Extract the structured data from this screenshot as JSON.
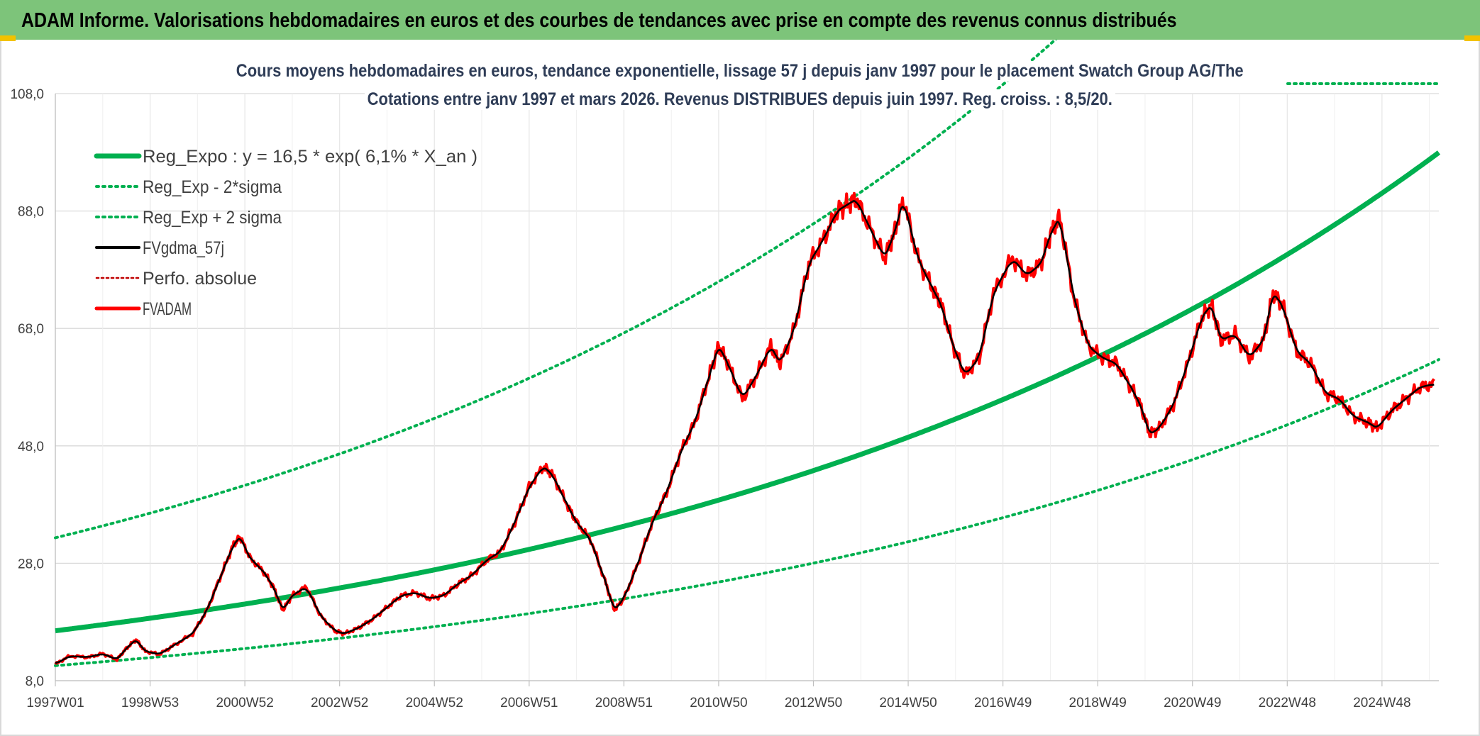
{
  "banner": {
    "title": "ADAM Informe. Valorisations hebdomadaires en euros et des courbes de tendances avec prise en compte des revenus connus distribués"
  },
  "colors": {
    "banner": "#7dc47a",
    "trend": "#00b050",
    "price": "#ff0000",
    "average": "#000000",
    "perf": "#c00000"
  },
  "chart_data": {
    "type": "line",
    "title": "Cours moyens hebdomadaires en euros, tendance exponentielle, lissage 57 j depuis janv 1997 pour le placement Swatch Group AG/The",
    "subtitle": "Cotations entre janv 1997 et mars 2026. Revenus DISTRIBUES depuis juin 1997. Reg. croiss. : 8,5/20.",
    "y_range": [
      8,
      108
    ],
    "x_range": [
      1997.0,
      2026.2
    ],
    "y_ticks": [
      "108,0",
      "88,0",
      "68,0",
      "48,0",
      "28,0",
      "8,0"
    ],
    "x_ticks": [
      "1997W01",
      "1998W53",
      "2000W52",
      "2002W52",
      "2004W52",
      "2006W51",
      "2008W51",
      "2010W50",
      "2012W50",
      "2014W50",
      "2016W49",
      "2018W49",
      "2020W49",
      "2022W48",
      "2024W48"
    ],
    "grid": true,
    "legend_position": "top-left",
    "legend": [
      "Reg_Expo : y = 16,5 * exp( 6,1% *  X_an )",
      "Reg_Exp - 2*sigma",
      "Reg_Exp + 2 sigma",
      "FVgdma_57j",
      "Perfo. absolue",
      "FVADAM"
    ],
    "trend": {
      "a": 16.5,
      "rate": 0.061,
      "start_year": 1997.0,
      "lower_factor": 0.64,
      "upper_factor": 1.96
    },
    "series": [
      {
        "name": "FVADAM",
        "x": [
          1997.0,
          1997.3,
          1997.7,
          1998.0,
          1998.3,
          1998.5,
          1998.7,
          1998.9,
          1999.2,
          1999.5,
          1999.9,
          2000.2,
          2000.5,
          2000.75,
          2000.9,
          2001.1,
          2001.4,
          2001.6,
          2001.8,
          2002.0,
          2002.3,
          2002.6,
          2002.9,
          2003.1,
          2003.4,
          2003.7,
          2004.0,
          2004.3,
          2004.6,
          2004.9,
          2005.2,
          2005.5,
          2005.8,
          2006.1,
          2006.4,
          2006.7,
          2007.0,
          2007.3,
          2007.5,
          2007.8,
          2008.0,
          2008.3,
          2008.6,
          2008.8,
          2009.0,
          2009.3,
          2009.6,
          2009.9,
          2010.2,
          2010.5,
          2010.8,
          2011.0,
          2011.2,
          2011.5,
          2011.8,
          2012.1,
          2012.3,
          2012.6,
          2012.9,
          2013.2,
          2013.5,
          2013.7,
          2013.9,
          2014.2,
          2014.5,
          2014.7,
          2014.9,
          2015.2,
          2015.5,
          2015.7,
          2015.95,
          2016.2,
          2016.5,
          2016.8,
          2017.2,
          2017.5,
          2017.8,
          2018.0,
          2018.2,
          2018.5,
          2018.8,
          2019.1,
          2019.4,
          2019.7,
          2019.9,
          2020.1,
          2020.3,
          2020.6,
          2020.9,
          2021.2,
          2021.4,
          2021.6,
          2021.9,
          2022.2,
          2022.5,
          2022.7,
          2022.9,
          2023.2,
          2023.5,
          2023.8,
          2024.1,
          2024.4,
          2024.7,
          2024.9,
          2025.2,
          2025.5,
          2025.8,
          2026.1
        ],
        "y": [
          10.8,
          12.2,
          12.0,
          12.6,
          11.6,
          13.5,
          15.0,
          13.0,
          12.5,
          14.0,
          16.0,
          20.0,
          26.0,
          31.0,
          32.5,
          29.0,
          26.5,
          24.0,
          20.0,
          22.5,
          24.0,
          19.0,
          16.5,
          16.0,
          17.0,
          18.5,
          20.5,
          22.5,
          23.0,
          22.0,
          22.5,
          24.5,
          26.0,
          28.5,
          30.0,
          35.0,
          41.0,
          44.5,
          43.0,
          38.0,
          35.0,
          32.0,
          25.0,
          20.0,
          22.0,
          28.0,
          35.0,
          40.0,
          47.0,
          52.0,
          60.0,
          65.0,
          62.0,
          56.0,
          60.0,
          65.0,
          62.0,
          68.0,
          79.0,
          83.0,
          88.0,
          89.0,
          90.0,
          85.0,
          80.0,
          84.0,
          90.0,
          80.0,
          75.0,
          72.0,
          65.0,
          60.0,
          63.0,
          74.0,
          80.0,
          77.0,
          79.0,
          84.0,
          87.0,
          73.0,
          65.0,
          63.0,
          62.0,
          58.0,
          55.0,
          50.0,
          51.0,
          55.0,
          62.0,
          70.0,
          72.0,
          66.0,
          67.0,
          63.0,
          66.0,
          74.0,
          72.0,
          64.0,
          62.0,
          57.0,
          56.0,
          53.0,
          52.0,
          51.0,
          54.0,
          56.0,
          58.0,
          58.5
        ]
      }
    ]
  }
}
